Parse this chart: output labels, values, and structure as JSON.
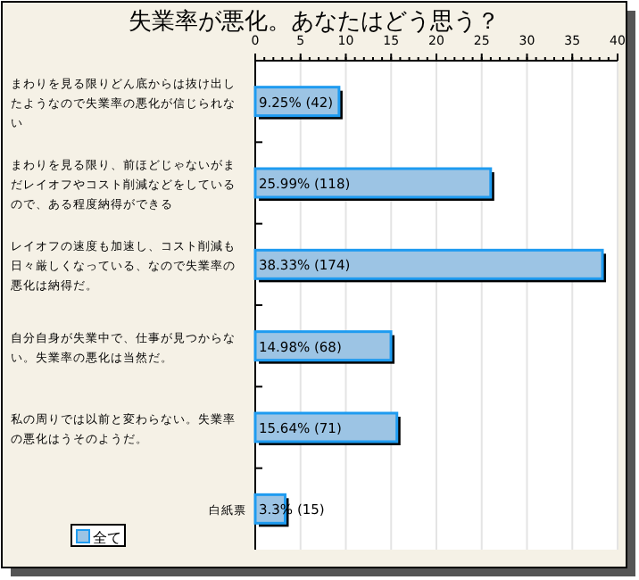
{
  "chart_data": {
    "type": "bar",
    "orientation": "horizontal",
    "title": "失業率が悪化。あなたはどう思う？",
    "categories": [
      "まわりを見る限りどん底からは抜け出したようなので失業率の悪化が信じられない",
      "まわりを見る限り、前ほどじゃないがまだレイオフやコスト削減などをしているので、ある程度納得ができる",
      "レイオフの速度も加速し、コスト削減も日々厳しくなっている、なので失業率の悪化は納得だ。",
      "自分自身が失業中で、仕事が見つからない。失業率の悪化は当然だ。",
      "私の周りでは以前と変わらない。失業率の悪化はうそのようだ。",
      "白紙票"
    ],
    "series": [
      {
        "name": "全て",
        "color": "#9cc4e4",
        "values": [
          9.25,
          25.99,
          38.33,
          14.98,
          15.64,
          3.3
        ],
        "value_labels": [
          "9.25% (42)",
          "25.99% (118)",
          "38.33% (174)",
          "14.98% (68)",
          "15.64% (71)",
          "3.3% (15)"
        ]
      }
    ],
    "xlim": [
      0,
      40
    ],
    "xticks": [
      0,
      5,
      10,
      15,
      20,
      25,
      30,
      35,
      40
    ],
    "grid": "x",
    "legend": "bottom left"
  }
}
